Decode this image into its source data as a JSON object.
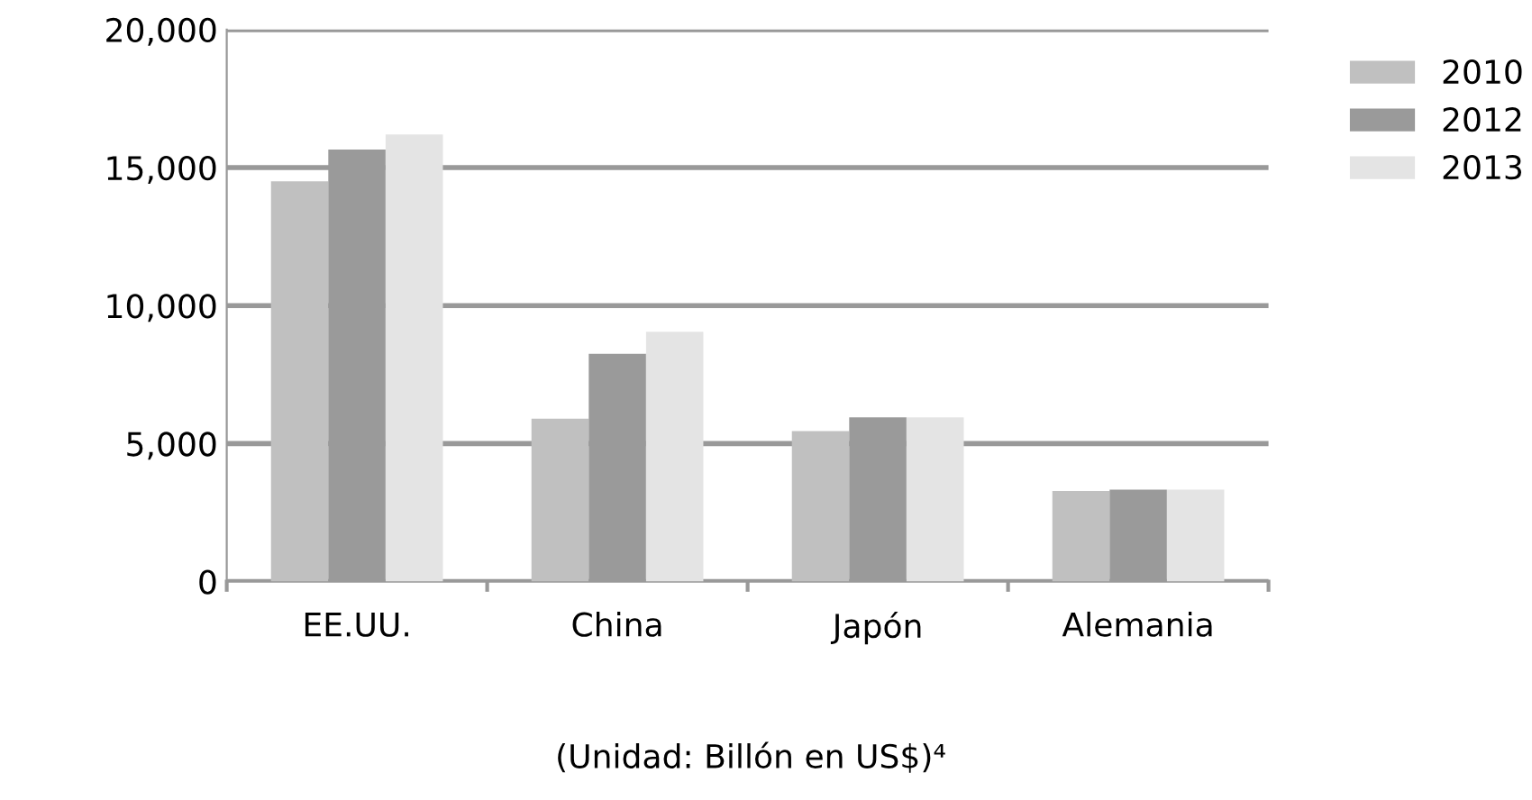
{
  "chart_data": {
    "type": "bar",
    "categories": [
      "EE.UU.",
      "China",
      "Japón",
      "Alemania"
    ],
    "series": [
      {
        "name": "2010",
        "color": "#c0c0c0",
        "values": [
          14500,
          5900,
          5450,
          3280
        ]
      },
      {
        "name": "2012",
        "color": "#9a9a9a",
        "values": [
          15650,
          8250,
          5950,
          3330
        ]
      },
      {
        "name": "2013",
        "color": "#e4e4e4",
        "values": [
          16200,
          9050,
          5950,
          3330
        ]
      }
    ],
    "ylim": [
      0,
      20000
    ],
    "yticks": [
      {
        "value": 0,
        "label": "0"
      },
      {
        "value": 5000,
        "label": "5,000"
      },
      {
        "value": 10000,
        "label": "10,000"
      },
      {
        "value": 15000,
        "label": "15,000"
      },
      {
        "value": 20000,
        "label": "20,000"
      }
    ],
    "grid": "y",
    "legend": "right",
    "annotations": [
      "(Unidad: Billón en US$)⁴"
    ]
  }
}
